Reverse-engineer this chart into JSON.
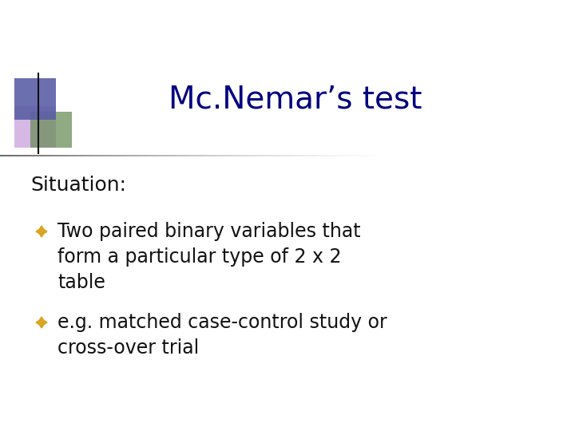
{
  "title": "Mc.Nemar’s test",
  "title_color": "#000080",
  "title_fontsize": 28,
  "situation_text": "Situation:",
  "situation_fontsize": 18,
  "bullet_color": "#DAA520",
  "bullet1_lines": [
    "Two paired binary variables that",
    "form a particular type of 2 x 2",
    "table"
  ],
  "bullet2_lines": [
    "e.g. matched case-control study or",
    "cross-over trial"
  ],
  "bullet_fontsize": 17,
  "text_color": "#111111",
  "bg_color": "#FFFFFF",
  "logo_colors": {
    "blue_rect": "#5B5EA6",
    "purple_rect": "#C9A0DC",
    "green_rect": "#6B8E5A"
  }
}
